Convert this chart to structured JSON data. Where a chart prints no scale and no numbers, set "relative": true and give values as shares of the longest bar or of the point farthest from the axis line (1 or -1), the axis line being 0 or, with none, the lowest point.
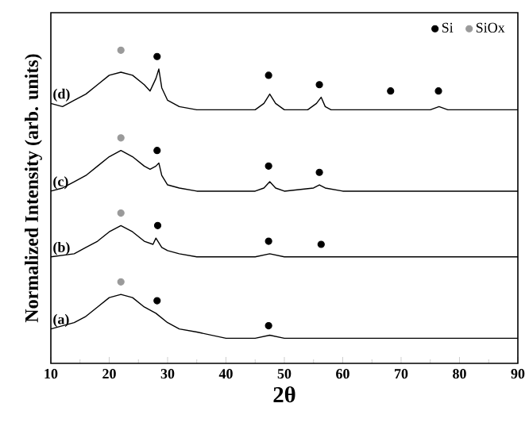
{
  "chart_data": {
    "type": "line",
    "relative": true,
    "xlabel": "2θ",
    "ylabel": "Normalized Intensity (arb. units)",
    "xlim": [
      10,
      90
    ],
    "xticks": [
      10,
      20,
      30,
      40,
      50,
      60,
      70,
      80,
      90
    ],
    "tick_labels": "x",
    "legend": "top right",
    "marker": "none",
    "line_style": "solid",
    "series": [
      {
        "color": "#000000",
        "x": [
          10,
          14,
          16,
          18,
          20,
          22,
          24,
          26,
          28,
          30,
          32,
          35,
          40,
          45,
          47.5,
          50,
          60,
          90
        ],
        "values": [
          0.11,
          0.13,
          0.15,
          0.18,
          0.21,
          0.22,
          0.21,
          0.18,
          0.16,
          0.13,
          0.11,
          0.1,
          0.08,
          0.08,
          0.09,
          0.08,
          0.08,
          0.08
        ]
      },
      {
        "color": "#000000",
        "x": [
          10,
          14,
          16,
          18,
          20,
          22,
          24,
          26,
          27.5,
          28,
          29,
          30,
          32,
          35,
          45,
          47.5,
          50,
          60,
          90
        ],
        "values": [
          0.34,
          0.35,
          0.37,
          0.39,
          0.42,
          0.44,
          0.42,
          0.39,
          0.38,
          0.4,
          0.37,
          0.36,
          0.35,
          0.34,
          0.34,
          0.35,
          0.34,
          0.34,
          0.34
        ]
      },
      {
        "color": "#000000",
        "x": [
          10,
          12,
          14,
          16,
          18,
          20,
          22,
          24,
          26,
          27,
          28,
          28.5,
          29,
          30,
          32,
          35,
          45,
          46.5,
          47.5,
          48.5,
          50,
          55,
          56,
          57,
          60,
          70,
          80,
          90
        ],
        "values": [
          0.55,
          0.56,
          0.58,
          0.6,
          0.63,
          0.66,
          0.68,
          0.66,
          0.63,
          0.62,
          0.63,
          0.64,
          0.6,
          0.57,
          0.56,
          0.55,
          0.55,
          0.56,
          0.58,
          0.56,
          0.55,
          0.56,
          0.57,
          0.56,
          0.55,
          0.55,
          0.55,
          0.55
        ]
      },
      {
        "color": "#000000",
        "x": [
          10,
          12,
          14,
          16,
          18,
          20,
          22,
          24,
          26,
          27,
          28,
          28.5,
          29,
          30,
          32,
          35,
          40,
          45,
          46.5,
          47.5,
          48.5,
          50,
          54,
          55.5,
          56.3,
          57,
          58,
          65,
          70,
          75,
          76.5,
          78,
          85,
          90
        ],
        "values": [
          0.83,
          0.82,
          0.84,
          0.86,
          0.89,
          0.92,
          0.93,
          0.92,
          0.89,
          0.87,
          0.91,
          0.94,
          0.88,
          0.84,
          0.82,
          0.81,
          0.81,
          0.81,
          0.83,
          0.86,
          0.83,
          0.81,
          0.81,
          0.83,
          0.85,
          0.82,
          0.81,
          0.81,
          0.81,
          0.81,
          0.82,
          0.81,
          0.81,
          0.81
        ]
      },
      {
        "name": "Si",
        "type": "scatter",
        "marker": "circle",
        "color": "#000000",
        "x": [
          28.2,
          47.3,
          56.0,
          68.2,
          76.4,
          28.2,
          47.3,
          56.0,
          28.3,
          47.3,
          56.3,
          28.2,
          47.3
        ],
        "values": [
          0.98,
          0.92,
          0.89,
          0.87,
          0.87,
          0.68,
          0.63,
          0.61,
          0.44,
          0.39,
          0.38,
          0.2,
          0.12
        ]
      },
      {
        "name": "SiOx",
        "type": "scatter",
        "marker": "circle",
        "color": "#9a9a9a",
        "x": [
          22.0,
          22.0,
          22.0,
          22.0
        ],
        "values": [
          1.0,
          0.72,
          0.48,
          0.26
        ]
      }
    ],
    "annotations": [
      "(d)",
      "(c)",
      "(b)",
      "(a)"
    ]
  }
}
